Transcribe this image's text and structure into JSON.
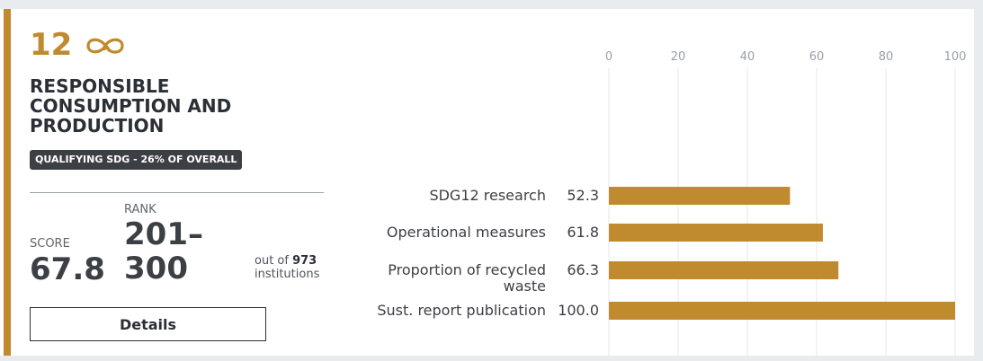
{
  "sdg": {
    "number": "12",
    "title": "RESPONSIBLE CONSUMPTION AND PRODUCTION",
    "badge": "QUALIFYING SDG - 26% OF OVERALL",
    "accent_color": "#c08a2e",
    "icon": "infinity-loop-icon"
  },
  "score": {
    "label": "SCORE",
    "value": "67.8"
  },
  "rank": {
    "label": "RANK",
    "value": "201–300",
    "out_of_prefix": "out of",
    "out_of_count": "973",
    "out_of_suffix": "institutions"
  },
  "details_label": "Details",
  "chart_data": {
    "type": "bar",
    "orientation": "horizontal",
    "categories": [
      "SDG12 research",
      "Operational measures",
      "Proportion of recycled waste",
      "Sust. report publication"
    ],
    "category_lines": [
      [
        "SDG12 research"
      ],
      [
        "Operational measures"
      ],
      [
        "Proportion of recycled",
        "waste"
      ],
      [
        "Sust. report publication"
      ]
    ],
    "values": [
      52.3,
      61.8,
      66.3,
      100.0
    ],
    "value_labels": [
      "52.3",
      "61.8",
      "66.3",
      "100.0"
    ],
    "xlim": [
      0,
      100
    ],
    "xticks": [
      0,
      20,
      40,
      60,
      80,
      100
    ],
    "tick_axis_position": "top",
    "grid": true,
    "bar_color": "#c08a2e"
  }
}
